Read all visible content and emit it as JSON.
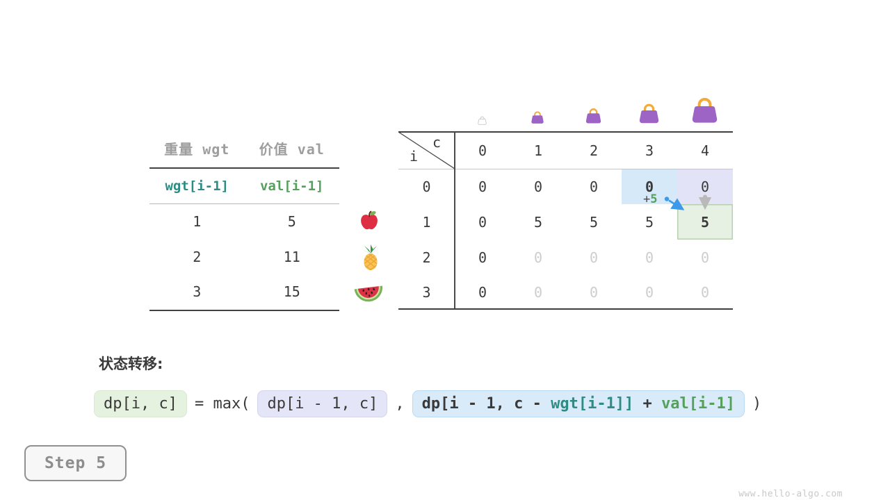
{
  "items_table": {
    "col_headers": [
      "重量 wgt",
      "价值 val"
    ],
    "index_row": [
      "wgt[i-1]",
      "val[i-1]"
    ],
    "rows": [
      [
        "1",
        "5"
      ],
      [
        "2",
        "11"
      ],
      [
        "3",
        "15"
      ]
    ]
  },
  "fruits": [
    "apple",
    "pineapple",
    "watermelon"
  ],
  "dp_table": {
    "corner": {
      "row_label": "i",
      "col_label": "c"
    },
    "col_headers": [
      "0",
      "1",
      "2",
      "3",
      "4"
    ],
    "row_headers": [
      "0",
      "1",
      "2",
      "3"
    ],
    "cells": [
      [
        "0",
        "0",
        "0",
        "0",
        "0"
      ],
      [
        "0",
        "5",
        "5",
        "5",
        "5"
      ],
      [
        "0",
        "0",
        "0",
        "0",
        "0"
      ],
      [
        "0",
        "0",
        "0",
        "0",
        "0"
      ]
    ],
    "cell_styles": [
      [
        "",
        "",
        "",
        "bold hl-blue",
        "hl-lav"
      ],
      [
        "",
        "",
        "",
        "",
        "bold hl-green"
      ],
      [
        "",
        "faded",
        "faded",
        "faded",
        "faded"
      ],
      [
        "",
        "faded",
        "faded",
        "faded",
        "faded"
      ]
    ],
    "bags": [
      {
        "capacity": 0,
        "variant": "empty",
        "size": 15
      },
      {
        "capacity": 1,
        "variant": "filled",
        "size": 22
      },
      {
        "capacity": 2,
        "variant": "filled",
        "size": 27
      },
      {
        "capacity": 3,
        "variant": "filled",
        "size": 35
      },
      {
        "capacity": 4,
        "variant": "filled",
        "size": 45
      }
    ],
    "annotation": {
      "label_plus": "+",
      "label_value": "5"
    }
  },
  "formula": {
    "heading": "状态转移:",
    "lhs": "dp[i, c]",
    "op": "= max(",
    "arg1": "dp[i - 1, c]",
    "comma": ",",
    "arg2": {
      "part1": "dp[i - 1, c - ",
      "part2": "wgt[i-1]]",
      "part3": " + ",
      "part4": "val[i-1]"
    },
    "close": ")"
  },
  "step_label": "Step 5",
  "watermark": "www.hello-algo.com",
  "colors": {
    "teal": "#2d8c84",
    "green": "#55a05a",
    "header_gray": "#9e9e9e",
    "hl_blue": "#d6e9f8",
    "hl_lavender": "#e2e3f6",
    "hl_green": "#e7f1e3",
    "arrow_blue": "#3d9ae8",
    "arrow_gray": "#b9b9b9",
    "bag_body": "#9d64c5",
    "bag_handle": "#f2aa3c"
  }
}
